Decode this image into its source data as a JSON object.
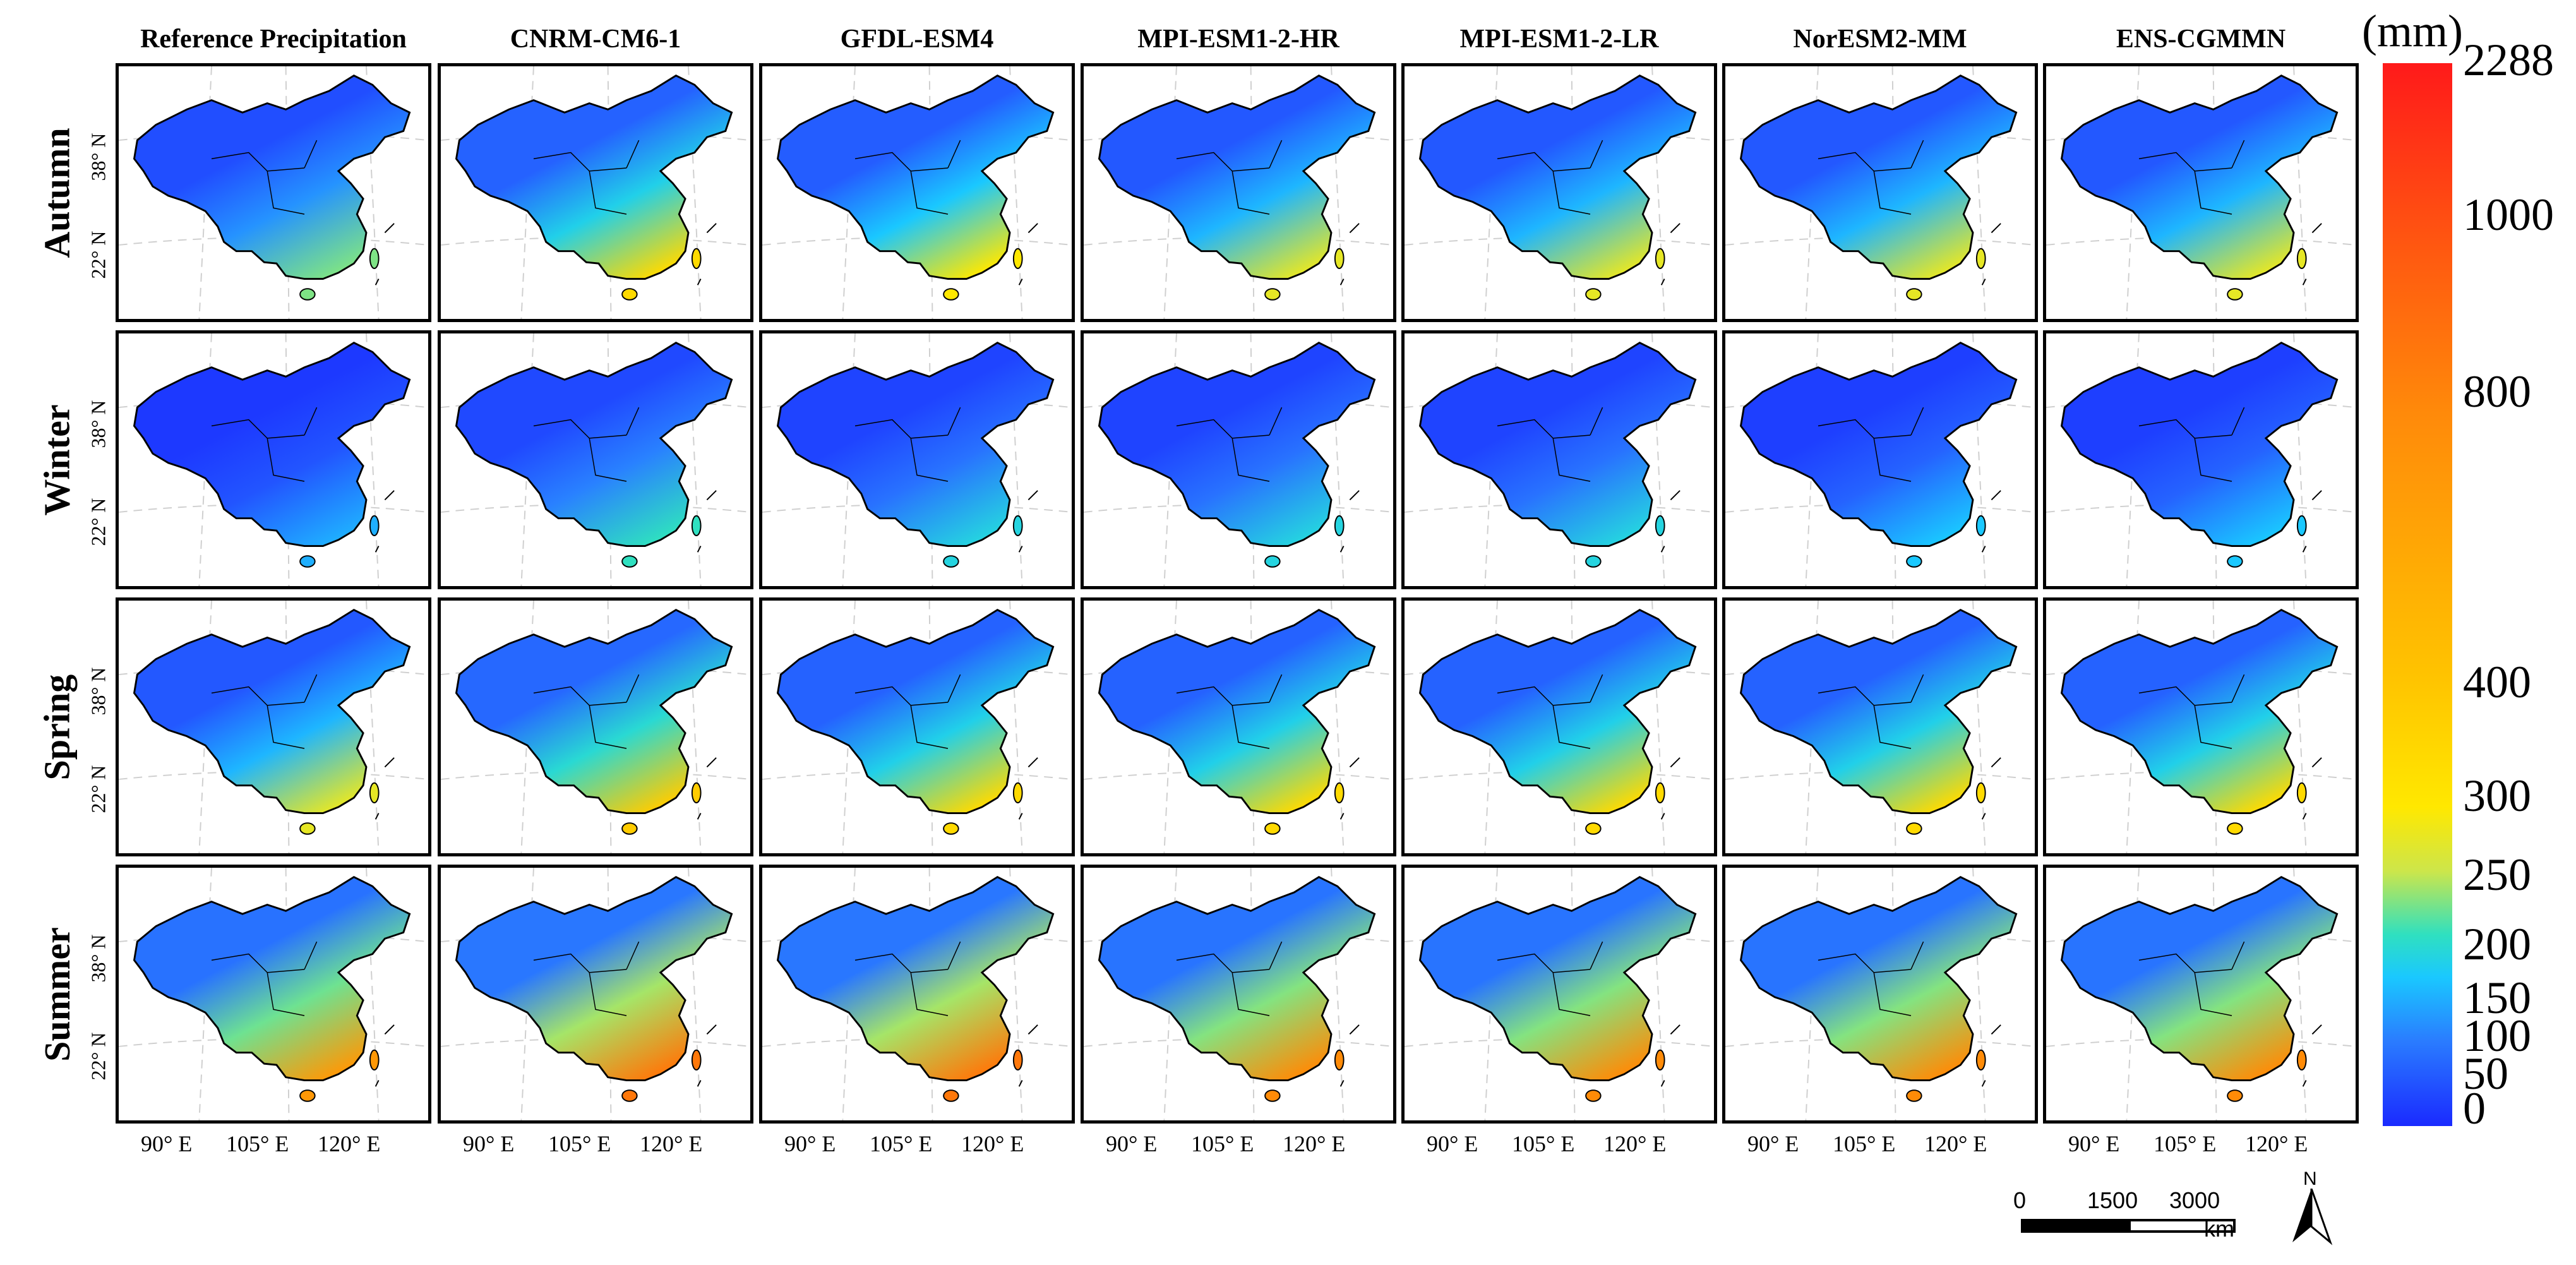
{
  "columns": [
    "Reference Precipitation",
    "CNRM-CM6-1",
    "GFDL-ESM4",
    "MPI-ESM1-2-HR",
    "MPI-ESM1-2-LR",
    "NorESM2-MM",
    "ENS-CGMMN"
  ],
  "rows": [
    "Autumn",
    "Winter",
    "Spring",
    "Summer"
  ],
  "lat_labels": [
    "38° N",
    "22° N"
  ],
  "lon_labels": [
    "90° E",
    "105° E",
    "120° E"
  ],
  "colorbar": {
    "unit": "(mm)",
    "ticks": [
      "2288",
      "1000",
      "800",
      "400",
      "300",
      "250",
      "200",
      "150",
      "100",
      "50",
      "0"
    ],
    "colors": {
      "high": "#ff1a1a",
      "mid": "#ffc400",
      "low": "#1a2aff",
      "cyan": "#1ac8ff"
    }
  },
  "scale": {
    "labels": [
      "0",
      "1500",
      "3000"
    ],
    "unit": "km"
  },
  "north_label": "N",
  "season_levels": {
    "Autumn": [
      0.35,
      0.55,
      0.5,
      0.45,
      0.45,
      0.45,
      0.45
    ],
    "Winter": [
      0.15,
      0.3,
      0.25,
      0.25,
      0.25,
      0.2,
      0.2
    ],
    "Spring": [
      0.45,
      0.6,
      0.55,
      0.55,
      0.55,
      0.55,
      0.55
    ],
    "Summer": [
      0.7,
      0.75,
      0.75,
      0.72,
      0.72,
      0.72,
      0.72
    ]
  }
}
